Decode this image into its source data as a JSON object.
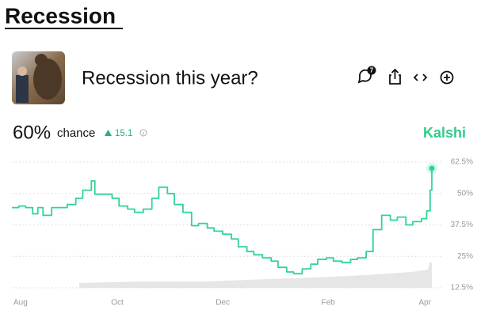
{
  "header": {
    "title": "Recession"
  },
  "market": {
    "question": "Recession this year?",
    "comments": 7,
    "current": {
      "value": 60,
      "label": "60%"
    },
    "current_suffix": "chance",
    "change": 15.1,
    "source": "Kalshi"
  },
  "chart_data": {
    "type": "line",
    "x": [
      0,
      4,
      8,
      12,
      15,
      18,
      23,
      28,
      32,
      37,
      41,
      46,
      48,
      53,
      58,
      62,
      67,
      71,
      76,
      81,
      85,
      90,
      94,
      99,
      104,
      108,
      113,
      117,
      122,
      127,
      131,
      136,
      140,
      145,
      150,
      154,
      159,
      163,
      168,
      173,
      177,
      182,
      186,
      191,
      196,
      200,
      205,
      209,
      214,
      219,
      223,
      228,
      232,
      237,
      240,
      242,
      243
    ],
    "series": [
      {
        "name": "Recession this year?",
        "color": "#2fd494",
        "values": [
          44.4,
          45,
          44.4,
          41.9,
          44.4,
          41.3,
          44.4,
          44.4,
          45.6,
          48.1,
          51.3,
          55,
          49.7,
          49.7,
          48.1,
          45,
          43.8,
          42.5,
          43.8,
          48.1,
          52.5,
          50,
          45.6,
          42.5,
          37.2,
          38.1,
          36.3,
          35,
          33.8,
          31.9,
          28.8,
          26.9,
          25.6,
          24.4,
          23.1,
          20.6,
          18.8,
          18.1,
          20,
          21.9,
          23.8,
          24.4,
          23.1,
          22.5,
          23.8,
          24.4,
          26.9,
          35.6,
          41.3,
          39.4,
          40.6,
          37.5,
          38.8,
          40,
          43.1,
          51.3,
          60
        ]
      }
    ],
    "xlim": [
      0,
      243
    ],
    "xticks": [
      {
        "value": 5,
        "label": "Aug"
      },
      {
        "value": 61,
        "label": "Oct"
      },
      {
        "value": 122,
        "label": "Dec"
      },
      {
        "value": 183,
        "label": "Feb"
      },
      {
        "value": 239,
        "label": "Apr"
      }
    ],
    "ylim": [
      12.5,
      62.5
    ],
    "yticks": [
      {
        "value": 12.5,
        "label": "12.5%"
      },
      {
        "value": 25,
        "label": "25%"
      },
      {
        "value": 37.5,
        "label": "37.5%"
      },
      {
        "value": 50,
        "label": "50%"
      },
      {
        "value": 62.5,
        "label": "62.5%"
      }
    ],
    "grid": true
  }
}
